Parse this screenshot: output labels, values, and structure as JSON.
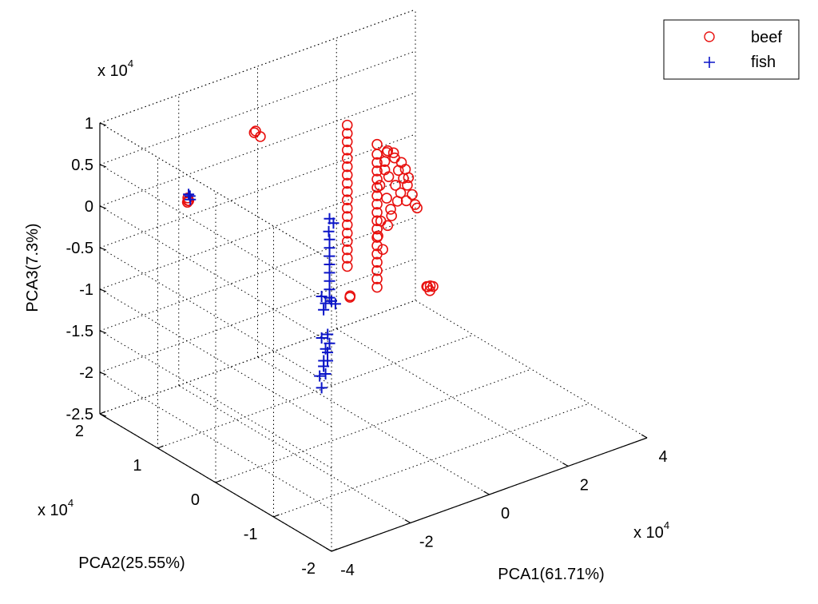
{
  "chart_data": {
    "type": "scatter",
    "title": "",
    "xlabel": "PCA1(61.71%)",
    "ylabel": "PCA2(25.55%)",
    "zlabel": "PCA3(7.3%)",
    "x_exponent_label": "x 10",
    "y_exponent_label": "x 10",
    "z_exponent_label": "x 10",
    "exponent_power": "4",
    "x_scale": 10000,
    "y_scale": 10000,
    "z_scale": 10000,
    "xlim": [
      -4,
      4
    ],
    "ylim": [
      -2,
      2
    ],
    "zlim": [
      -2.5,
      1
    ],
    "x_ticks": [
      "-4",
      "-2",
      "0",
      "2",
      "4"
    ],
    "y_ticks": [
      "-2",
      "-1",
      "0",
      "1",
      "2"
    ],
    "z_ticks": [
      "-2.5",
      "-2",
      "-1.5",
      "-1",
      "-0.5",
      "0",
      "0.5",
      "1"
    ],
    "grid": true,
    "legend_position": "top-right",
    "series": [
      {
        "name": "beef",
        "marker": "circle",
        "color": "#e8100e",
        "points": [
          [
            -2.47,
            1.53,
            -0.02
          ],
          [
            -2.44,
            1.54,
            -0.01
          ],
          [
            -2.45,
            1.52,
            0.0
          ],
          [
            -2.46,
            1.53,
            0.03
          ],
          [
            -1.2,
            1.24,
            0.72
          ],
          [
            -1.18,
            1.23,
            0.74
          ],
          [
            -1.12,
            1.19,
            0.68
          ],
          [
            -0.15,
            0.35,
            1.0
          ],
          [
            -0.15,
            0.35,
            0.9
          ],
          [
            -0.15,
            0.35,
            0.8
          ],
          [
            -0.15,
            0.35,
            0.7
          ],
          [
            -0.15,
            0.35,
            0.6
          ],
          [
            -0.15,
            0.35,
            0.5
          ],
          [
            -0.15,
            0.35,
            0.4
          ],
          [
            -0.15,
            0.35,
            0.3
          ],
          [
            -0.15,
            0.35,
            0.2
          ],
          [
            -0.15,
            0.35,
            0.1
          ],
          [
            -0.15,
            0.35,
            0.0
          ],
          [
            -0.15,
            0.35,
            -0.1
          ],
          [
            -0.15,
            0.35,
            -0.2
          ],
          [
            -0.15,
            0.35,
            -0.3
          ],
          [
            -0.15,
            0.35,
            -0.4
          ],
          [
            -0.15,
            0.35,
            -0.5
          ],
          [
            -0.15,
            0.35,
            -0.6
          ],
          [
            -0.15,
            0.35,
            -0.7
          ],
          [
            0.65,
            0.38,
            0.62
          ],
          [
            0.65,
            0.38,
            0.5
          ],
          [
            0.65,
            0.38,
            0.4
          ],
          [
            0.65,
            0.38,
            0.3
          ],
          [
            0.65,
            0.38,
            0.2
          ],
          [
            0.65,
            0.38,
            0.1
          ],
          [
            0.65,
            0.38,
            0.0
          ],
          [
            0.65,
            0.38,
            -0.1
          ],
          [
            0.65,
            0.38,
            -0.2
          ],
          [
            0.65,
            0.38,
            -0.3
          ],
          [
            0.65,
            0.38,
            -0.4
          ],
          [
            0.65,
            0.38,
            -0.5
          ],
          [
            0.65,
            0.38,
            -0.6
          ],
          [
            0.65,
            0.38,
            -0.7
          ],
          [
            0.65,
            0.38,
            -0.8
          ],
          [
            0.65,
            0.38,
            -0.9
          ],
          [
            0.65,
            0.38,
            -1.0
          ],
          [
            0.65,
            0.38,
            -1.1
          ],
          [
            0.8,
            0.3,
            0.55
          ],
          [
            0.85,
            0.35,
            0.5
          ],
          [
            0.95,
            0.3,
            0.5
          ],
          [
            1.05,
            0.35,
            0.4
          ],
          [
            1.15,
            0.3,
            0.35
          ],
          [
            1.25,
            0.3,
            0.25
          ],
          [
            1.3,
            0.28,
            0.15
          ],
          [
            1.3,
            0.3,
            0.05
          ],
          [
            1.35,
            0.25,
            -0.05
          ],
          [
            1.35,
            0.2,
            -0.15
          ],
          [
            1.4,
            0.2,
            -0.2
          ],
          [
            0.8,
            0.35,
            0.3
          ],
          [
            0.9,
            0.35,
            0.2
          ],
          [
            1.0,
            0.3,
            0.1
          ],
          [
            1.1,
            0.28,
            0.0
          ],
          [
            1.2,
            0.25,
            -0.1
          ],
          [
            0.75,
            0.4,
            0.1
          ],
          [
            0.85,
            0.35,
            -0.05
          ],
          [
            0.95,
            0.35,
            -0.2
          ],
          [
            1.05,
            0.3,
            -0.1
          ],
          [
            0.7,
            0.35,
            -0.3
          ],
          [
            0.8,
            0.3,
            -0.35
          ],
          [
            0.9,
            0.3,
            -0.25
          ],
          [
            0.8,
            0.35,
            0.4
          ],
          [
            1.0,
            0.25,
            0.3
          ],
          [
            1.2,
            0.3,
            0.15
          ],
          [
            0.7,
            0.4,
            -0.5
          ],
          [
            0.75,
            0.35,
            -0.65
          ],
          [
            0.02,
            0.42,
            -1.13
          ],
          [
            0.04,
            0.43,
            -1.12
          ],
          [
            1.85,
            0.34,
            -1.28
          ],
          [
            1.9,
            0.36,
            -1.3
          ],
          [
            1.95,
            0.3,
            -1.28
          ],
          [
            1.9,
            0.32,
            -1.33
          ],
          [
            1.88,
            0.3,
            -1.26
          ]
        ]
      },
      {
        "name": "fish",
        "marker": "plus",
        "color": "#0b15c8",
        "points": [
          [
            -2.44,
            1.5,
            0.02
          ],
          [
            -2.42,
            1.52,
            0.05
          ],
          [
            -2.44,
            1.53,
            0.07
          ],
          [
            -0.6,
            0.35,
            -0.05
          ],
          [
            -0.5,
            0.35,
            -0.12
          ],
          [
            -0.62,
            0.35,
            -0.2
          ],
          [
            -0.6,
            0.35,
            -0.3
          ],
          [
            -0.6,
            0.35,
            -0.4
          ],
          [
            -0.6,
            0.35,
            -0.5
          ],
          [
            -0.6,
            0.35,
            -0.6
          ],
          [
            -0.6,
            0.35,
            -0.7
          ],
          [
            -0.6,
            0.35,
            -0.8
          ],
          [
            -0.6,
            0.35,
            -0.9
          ],
          [
            -0.6,
            0.35,
            -1.0
          ],
          [
            -0.55,
            0.35,
            -1.05
          ],
          [
            -0.45,
            0.35,
            -1.1
          ],
          [
            -0.7,
            0.35,
            -1.05
          ],
          [
            -0.8,
            0.35,
            -0.95
          ],
          [
            -0.75,
            0.35,
            -1.12
          ],
          [
            -0.72,
            0.3,
            -1.4
          ],
          [
            -0.8,
            0.35,
            -1.45
          ],
          [
            -0.7,
            0.35,
            -1.6
          ],
          [
            -0.82,
            0.3,
            -1.7
          ],
          [
            -0.6,
            0.35,
            -1.55
          ],
          [
            -0.65,
            0.35,
            -1.65
          ],
          [
            -0.75,
            0.35,
            -1.8
          ],
          [
            -0.7,
            0.35,
            -1.9
          ],
          [
            -0.85,
            0.35,
            -1.9
          ],
          [
            -0.8,
            0.35,
            -2.05
          ],
          [
            -0.65,
            0.35,
            -1.75
          ]
        ]
      }
    ]
  }
}
